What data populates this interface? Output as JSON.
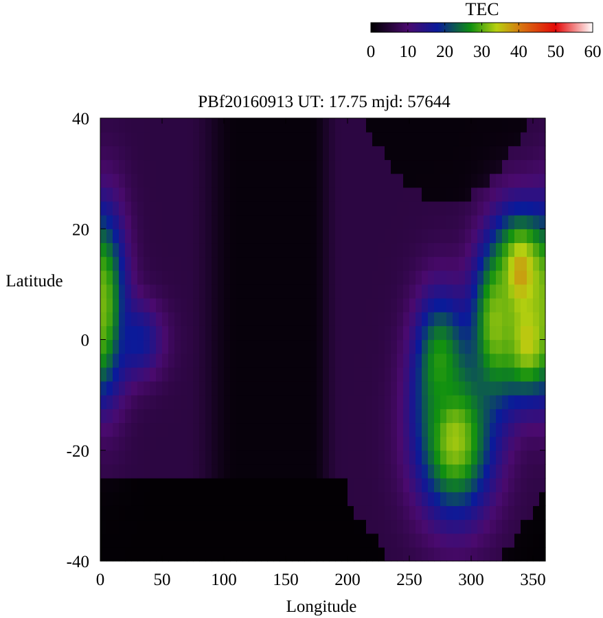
{
  "chart_data": {
    "type": "heatmap",
    "title": "PBf20160913  UT: 17.75  mjd: 57644",
    "xlabel": "Longitude",
    "ylabel": "Latitude",
    "xlim": [
      0,
      360
    ],
    "ylim": [
      -40,
      40
    ],
    "x_ticks": [
      0,
      50,
      100,
      150,
      200,
      250,
      300,
      350
    ],
    "y_ticks": [
      -40,
      -20,
      0,
      20,
      40
    ],
    "grid": false,
    "colorbar": {
      "label": "TEC",
      "range": [
        0,
        60
      ],
      "ticks": [
        0,
        10,
        20,
        30,
        40,
        50,
        60
      ],
      "placement": "top-right",
      "stops": [
        {
          "value": 0,
          "color": "#000000"
        },
        {
          "value": 10,
          "color": "#4a0a6e"
        },
        {
          "value": 18,
          "color": "#0a1a9a"
        },
        {
          "value": 27,
          "color": "#109010"
        },
        {
          "value": 34,
          "color": "#b8d010"
        },
        {
          "value": 41,
          "color": "#d87010"
        },
        {
          "value": 50,
          "color": "#e40808"
        },
        {
          "value": 60,
          "color": "#ffffff"
        }
      ]
    },
    "grid_resolution": {
      "lon_step": 5,
      "lat_step": 2.5
    },
    "features": [
      {
        "kind": "background",
        "tec": 6
      },
      {
        "kind": "night_low",
        "lon": [
          100,
          190
        ],
        "lat": [
          -40,
          40
        ],
        "tec": 1
      },
      {
        "kind": "south_low",
        "lon": [
          0,
          240
        ],
        "lat": [
          -40,
          -27
        ],
        "tec": 0
      },
      {
        "kind": "north_low_cap",
        "lon": [
          190,
          340
        ],
        "lat_min_at_center": 25,
        "center_lon": 280,
        "tec": 1
      },
      {
        "kind": "peak",
        "lon": 5,
        "lat": 7,
        "tec": 27,
        "sigma_lon": 12,
        "sigma_lat": 12
      },
      {
        "kind": "peak",
        "lon": 30,
        "lat": 0,
        "tec": 18,
        "sigma_lon": 15,
        "sigma_lat": 5
      },
      {
        "kind": "peak",
        "lon": 287,
        "lat": -18,
        "tec": 33,
        "sigma_lon": 22,
        "sigma_lat": 10
      },
      {
        "kind": "peak",
        "lon": 275,
        "lat": -4,
        "tec": 28,
        "sigma_lon": 15,
        "sigma_lat": 9
      },
      {
        "kind": "peak",
        "lon": 340,
        "lat": 12,
        "tec": 38,
        "sigma_lon": 15,
        "sigma_lat": 8
      },
      {
        "kind": "peak",
        "lon": 345,
        "lat": 0,
        "tec": 35,
        "sigma_lon": 14,
        "sigma_lat": 7
      },
      {
        "kind": "peak",
        "lon": 320,
        "lat": 3,
        "tec": 32,
        "sigma_lon": 14,
        "sigma_lat": 10
      }
    ]
  }
}
